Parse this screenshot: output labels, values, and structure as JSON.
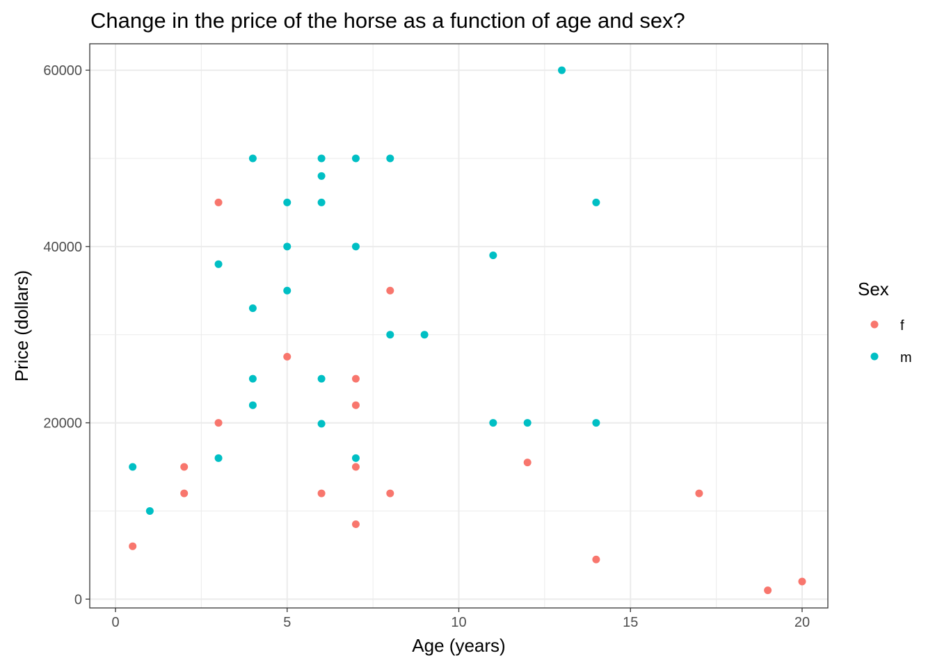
{
  "chart_data": {
    "type": "scatter",
    "title": "Change in the price of the horse as a function of age and sex?",
    "xlabel": "Age (years)",
    "ylabel": "Price (dollars)",
    "xlim": [
      -0.75,
      20.75
    ],
    "ylim": [
      -1000,
      63000
    ],
    "x_ticks": [
      0,
      5,
      10,
      15,
      20
    ],
    "y_ticks": [
      0,
      20000,
      40000,
      60000
    ],
    "grid": true,
    "legend": {
      "title": "Sex",
      "position": "right"
    },
    "series": [
      {
        "name": "f",
        "color": "#F8766D",
        "points": [
          {
            "x": 0.5,
            "y": 6000
          },
          {
            "x": 2,
            "y": 15000
          },
          {
            "x": 2,
            "y": 12000
          },
          {
            "x": 3,
            "y": 45000
          },
          {
            "x": 3,
            "y": 20000
          },
          {
            "x": 5,
            "y": 27500
          },
          {
            "x": 6,
            "y": 12000
          },
          {
            "x": 7,
            "y": 25000
          },
          {
            "x": 7,
            "y": 22000
          },
          {
            "x": 7,
            "y": 15000
          },
          {
            "x": 7,
            "y": 8500
          },
          {
            "x": 8,
            "y": 35000
          },
          {
            "x": 8,
            "y": 12000
          },
          {
            "x": 12,
            "y": 15500
          },
          {
            "x": 14,
            "y": 4500
          },
          {
            "x": 17,
            "y": 12000
          },
          {
            "x": 19,
            "y": 1000
          },
          {
            "x": 20,
            "y": 2000
          }
        ]
      },
      {
        "name": "m",
        "color": "#00BFC4",
        "points": [
          {
            "x": 0.5,
            "y": 15000
          },
          {
            "x": 1,
            "y": 10000
          },
          {
            "x": 3,
            "y": 38000
          },
          {
            "x": 3,
            "y": 16000
          },
          {
            "x": 4,
            "y": 50000
          },
          {
            "x": 4,
            "y": 33000
          },
          {
            "x": 4,
            "y": 25000
          },
          {
            "x": 4,
            "y": 22000
          },
          {
            "x": 5,
            "y": 45000
          },
          {
            "x": 5,
            "y": 40000
          },
          {
            "x": 5,
            "y": 35000
          },
          {
            "x": 6,
            "y": 50000
          },
          {
            "x": 6,
            "y": 48000
          },
          {
            "x": 6,
            "y": 45000
          },
          {
            "x": 6,
            "y": 25000
          },
          {
            "x": 6,
            "y": 19900
          },
          {
            "x": 7,
            "y": 50000
          },
          {
            "x": 7,
            "y": 40000
          },
          {
            "x": 7,
            "y": 16000
          },
          {
            "x": 8,
            "y": 50000
          },
          {
            "x": 8,
            "y": 30000
          },
          {
            "x": 9,
            "y": 30000
          },
          {
            "x": 11,
            "y": 39000
          },
          {
            "x": 11,
            "y": 20000
          },
          {
            "x": 12,
            "y": 20000
          },
          {
            "x": 13,
            "y": 60000
          },
          {
            "x": 14,
            "y": 45000
          },
          {
            "x": 14,
            "y": 20000
          }
        ]
      }
    ]
  }
}
